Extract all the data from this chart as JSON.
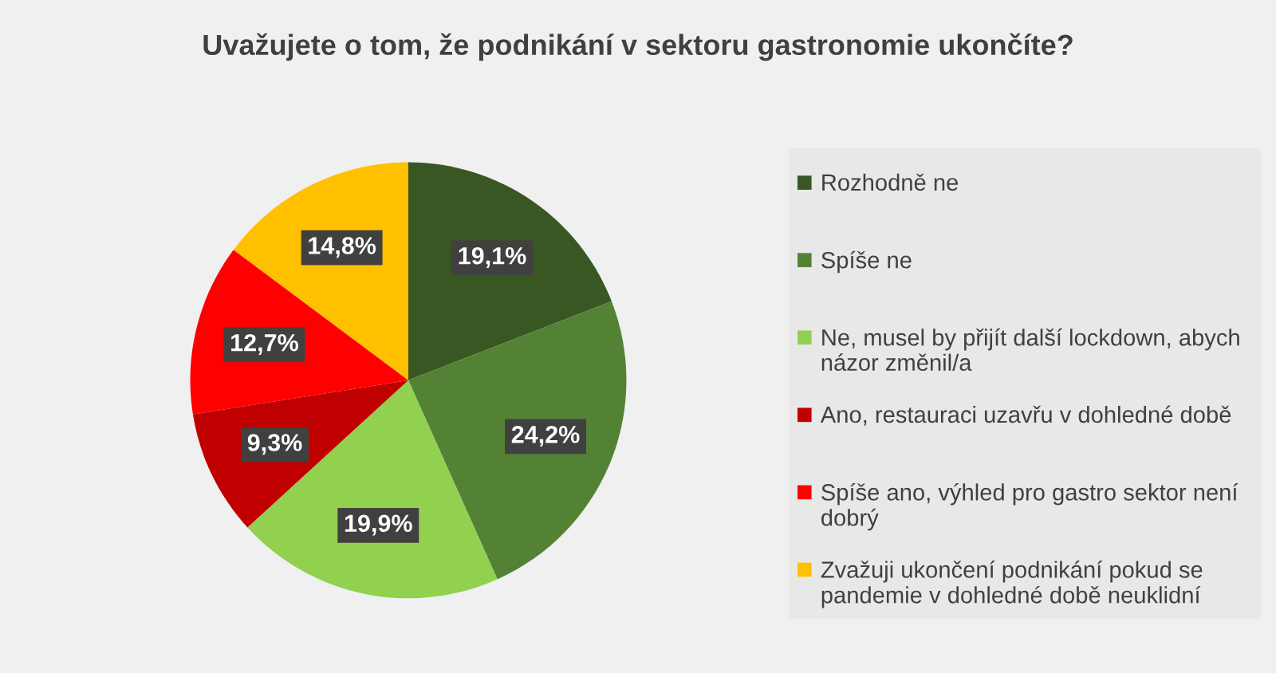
{
  "chart_data": {
    "type": "pie",
    "title": "Uvažujete o tom, že podnikání v sektoru gastronomie ukončíte?",
    "categories": [
      "Rozhodně ne",
      "Spíše ne",
      "Ne, musel by přijít další lockdown, abych názor změnil/a",
      "Ano, restauraci uzavřu v dohledné době",
      "Spíše ano, výhled pro gastro sektor není dobrý",
      "Zvažuji ukončení podnikání pokud se pandemie v dohledné době neuklidní"
    ],
    "values": [
      19.1,
      24.2,
      19.9,
      9.3,
      12.7,
      14.8
    ],
    "value_labels": [
      "19,1%",
      "24,2%",
      "19,9%",
      "9,3%",
      "12,7%",
      "14,8%"
    ],
    "colors": [
      "#385723",
      "#548235",
      "#92d050",
      "#c00000",
      "#ff0000",
      "#ffc000"
    ],
    "legend": "right"
  }
}
